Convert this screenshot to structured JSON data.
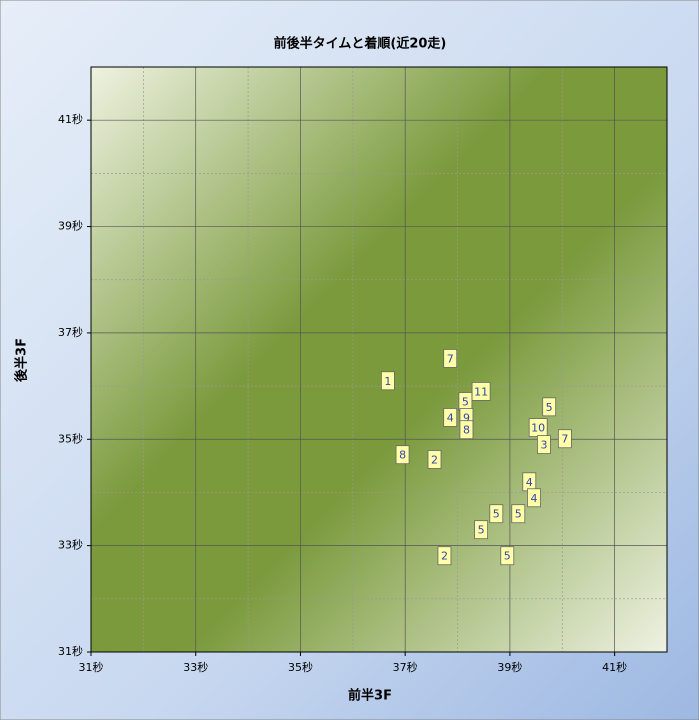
{
  "chart_data": {
    "type": "scatter",
    "title": "前後半タイムと着順(近20走)",
    "x_label": "前半3F",
    "y_label": "後半3F",
    "xlim": [
      31,
      42
    ],
    "ylim": [
      31,
      42
    ],
    "xticks": [
      {
        "value": 31,
        "label": "31秒"
      },
      {
        "value": 33,
        "label": "33秒"
      },
      {
        "value": 35,
        "label": "35秒"
      },
      {
        "value": 37,
        "label": "37秒"
      },
      {
        "value": 39,
        "label": "39秒"
      },
      {
        "value": 41,
        "label": "41秒"
      }
    ],
    "yticks": [
      {
        "value": 31,
        "label": "31秒"
      },
      {
        "value": 33,
        "label": "33秒"
      },
      {
        "value": 35,
        "label": "35秒"
      },
      {
        "value": 37,
        "label": "37秒"
      },
      {
        "value": 39,
        "label": "39秒"
      },
      {
        "value": 41,
        "label": "41秒"
      }
    ],
    "x_minor_ticks": [
      32,
      34,
      36,
      38,
      40,
      42
    ],
    "y_minor_ticks": [
      32,
      34,
      36,
      38,
      40,
      42
    ],
    "grid": true,
    "color": "#ffffa8",
    "series": [
      {
        "name": "着順",
        "x": [
          36.67,
          37.86,
          38.45,
          38.15,
          37.86,
          38.17,
          38.17,
          39.75,
          39.54,
          39.65,
          40.05,
          36.95,
          37.56,
          39.37,
          39.46,
          38.74,
          39.16,
          38.45,
          37.75,
          38.95
        ],
        "values": [
          36.1,
          36.52,
          35.9,
          35.71,
          35.41,
          35.41,
          35.18,
          35.61,
          35.22,
          34.9,
          35.01,
          34.71,
          34.62,
          34.2,
          33.9,
          33.6,
          33.6,
          33.3,
          32.81,
          32.81
        ],
        "labels": [
          1,
          7,
          11,
          5,
          4,
          9,
          8,
          5,
          10,
          3,
          7,
          8,
          2,
          4,
          4,
          5,
          5,
          5,
          2,
          5
        ]
      }
    ]
  }
}
